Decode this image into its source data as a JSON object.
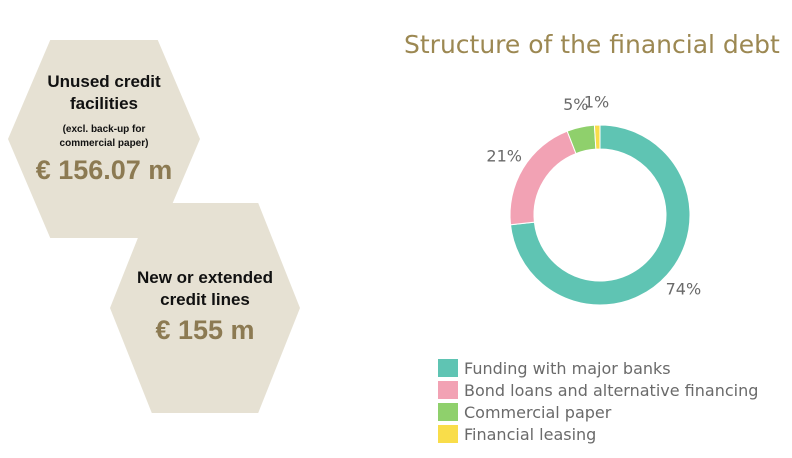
{
  "left_panel": {
    "unused_credit": {
      "heading": "Unused credit facilities",
      "note": "(excl. back-up for commercial paper)",
      "value": "€ 156.07 m"
    },
    "new_credit": {
      "heading": "New or extended credit lines",
      "value": "€ 155 m"
    }
  },
  "colors": {
    "hex_fill": "#e6e1d3",
    "accent_gold": "#9c8852",
    "value_gold": "#8c7a52"
  },
  "chart_data": {
    "type": "pie",
    "variant": "donut",
    "title": "Structure of the financial debt",
    "categories": [
      "Funding with major banks",
      "Bond loans and alternative financing",
      "Commercial paper",
      "Financial leasing"
    ],
    "values": [
      74,
      21,
      5,
      1
    ],
    "labels": [
      "74%",
      "21%",
      "5%",
      "1%"
    ],
    "colors": [
      "#5fc4b3",
      "#f2a2b4",
      "#8fd06c",
      "#f9dd4a"
    ],
    "legend_position": "bottom"
  }
}
